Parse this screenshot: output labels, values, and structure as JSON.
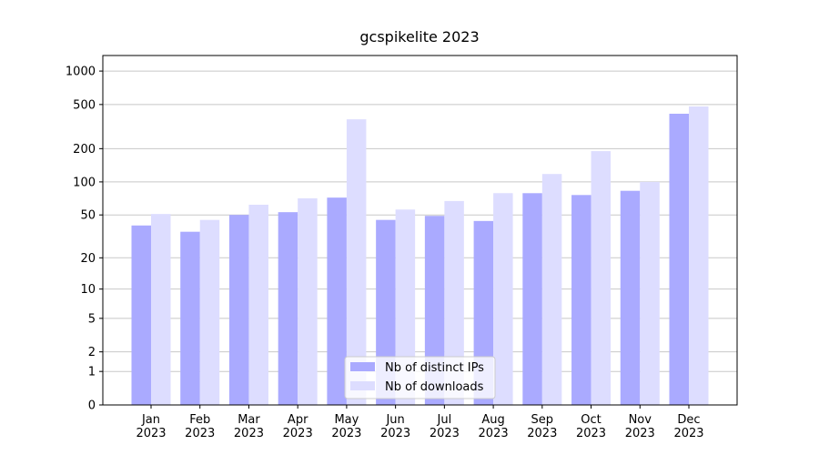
{
  "chart_data": {
    "type": "bar",
    "title": "gcspikelite 2023",
    "categories": [
      "Jan\n2023",
      "Feb\n2023",
      "Mar\n2023",
      "Apr\n2023",
      "May\n2023",
      "Jun\n2023",
      "Jul\n2023",
      "Aug\n2023",
      "Sep\n2023",
      "Oct\n2023",
      "Nov\n2023",
      "Dec\n2023"
    ],
    "series": [
      {
        "name": "Nb of distinct IPs",
        "color": "#aaaaff",
        "values": [
          40,
          35,
          50,
          53,
          72,
          45,
          49,
          44,
          79,
          76,
          83,
          413
        ]
      },
      {
        "name": "Nb of downloads",
        "color": "#ddddff",
        "values": [
          51,
          45,
          62,
          71,
          368,
          56,
          67,
          79,
          118,
          190,
          100,
          480
        ]
      }
    ],
    "yscale": "log1p",
    "ylim": [
      0,
      1380
    ],
    "yticks": [
      0,
      1,
      2,
      5,
      10,
      20,
      50,
      100,
      200,
      500,
      1000
    ],
    "grid": true,
    "legend": "lower center"
  }
}
